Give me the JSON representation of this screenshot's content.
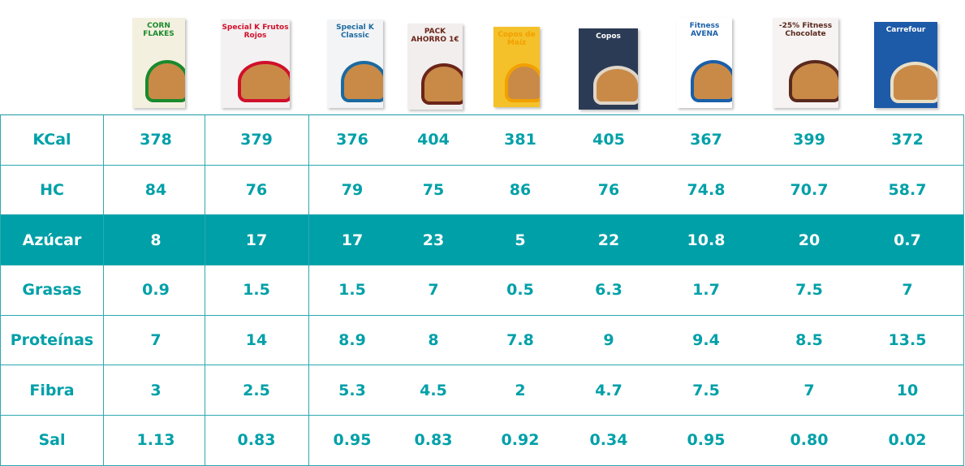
{
  "products": [
    {
      "name": "CORN FLAKES",
      "color": "#f4f0e0",
      "accent": "#1a8a2c"
    },
    {
      "name": "Special K Frutos Rojos",
      "color": "#f3f1f2",
      "accent": "#d0102b"
    },
    {
      "name": "Special K Classic",
      "color": "#f3f4f6",
      "accent": "#1b6aa0"
    },
    {
      "name": "PACK AHORRO 1€",
      "color": "#f2eeee",
      "accent": "#6b2518"
    },
    {
      "name": "Copos de Maíz",
      "color": "#f4c12a",
      "accent": "#f2a000"
    },
    {
      "name": "Copos",
      "color": "#2c3b55",
      "accent": "#e0d6c8"
    },
    {
      "name": "Fitness AVENA",
      "color": "#ffffff",
      "accent": "#1a5fa8"
    },
    {
      "name": "-25% Fitness Chocolate",
      "color": "#f6f3f2",
      "accent": "#5a2a1e"
    },
    {
      "name": "Carrefour",
      "color": "#1d5aa8",
      "accent": "#e9dfc6"
    }
  ],
  "rows": [
    {
      "label": "KCal",
      "values": [
        "378",
        "379",
        "376",
        "404",
        "381",
        "405",
        "367",
        "399",
        "372"
      ]
    },
    {
      "label": "HC",
      "values": [
        "84",
        "76",
        "79",
        "75",
        "86",
        "76",
        "74.8",
        "70.7",
        "58.7"
      ]
    },
    {
      "label": "Azúcar",
      "highlight": true,
      "values": [
        "8",
        "17",
        "17",
        "23",
        "5",
        "22",
        "10.8",
        "20",
        "0.7"
      ]
    },
    {
      "label": "Grasas",
      "values": [
        "0.9",
        "1.5",
        "1.5",
        "7",
        "0.5",
        "6.3",
        "1.7",
        "7.5",
        "7"
      ]
    },
    {
      "label": "Proteínas",
      "values": [
        "7",
        "14",
        "8.9",
        "8",
        "7.8",
        "9",
        "9.4",
        "8.5",
        "13.5"
      ]
    },
    {
      "label": "Fibra",
      "values": [
        "3",
        "2.5",
        "5.3",
        "4.5",
        "2",
        "4.7",
        "7.5",
        "7",
        "10"
      ]
    },
    {
      "label": "Sal",
      "values": [
        "1.13",
        "0.83",
        "0.95",
        "0.83",
        "0.92",
        "0.34",
        "0.95",
        "0.80",
        "0.02"
      ]
    }
  ],
  "colors": {
    "teal": "#00a0a8"
  }
}
